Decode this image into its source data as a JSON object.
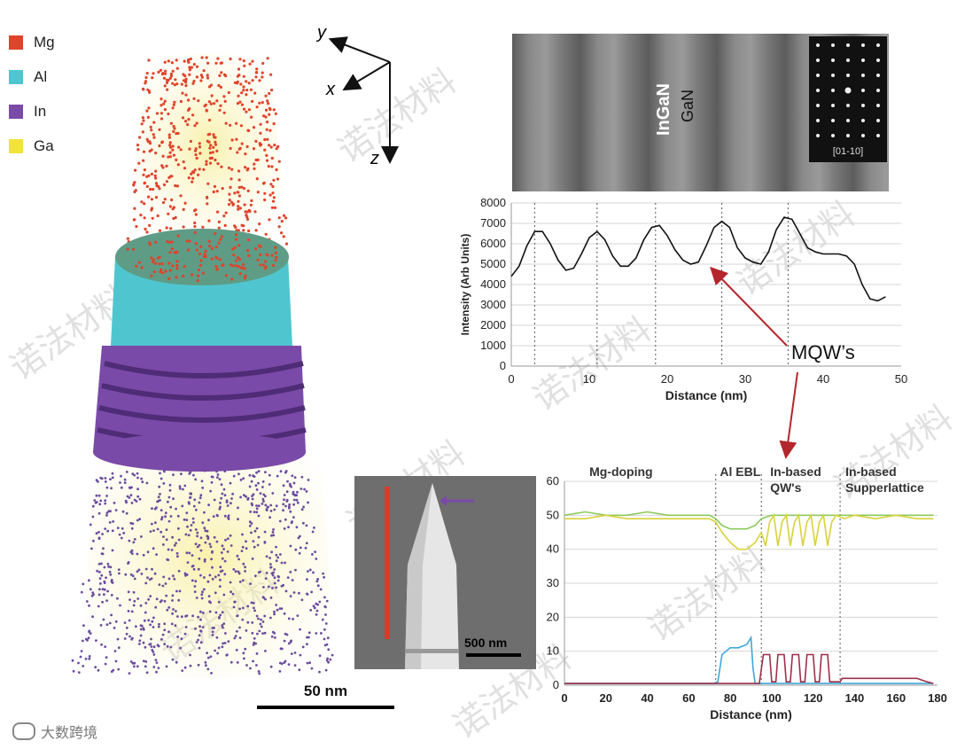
{
  "legend": [
    {
      "label": "Mg",
      "color": "#e0432b"
    },
    {
      "label": "Al",
      "color": "#4fc6cf"
    },
    {
      "label": "In",
      "color": "#7a4aa8"
    },
    {
      "label": "Ga",
      "color": "#f2e33a"
    }
  ],
  "scale_bar_50": "50 nm",
  "axes_triad": {
    "y": "y",
    "x": "x",
    "z": "z"
  },
  "tem": {
    "label_ingan": "InGaN",
    "label_gan": "GaN",
    "diffraction_label": "[01-10]"
  },
  "sem": {
    "scale_label": "500 nm"
  },
  "annotation_mqw": "MQW’s",
  "watermark_text": "诺法材料",
  "footer_brand": "大数跨境",
  "chart_data": [
    {
      "type": "line",
      "xlabel": "Distance (nm)",
      "ylabel": "Intensity (Arb Units)",
      "xlim": [
        0,
        50
      ],
      "ylim": [
        0,
        8000
      ],
      "xticks": [
        0,
        10,
        20,
        30,
        40,
        50
      ],
      "yticks": [
        0,
        1000,
        2000,
        3000,
        4000,
        5000,
        6000,
        7000,
        8000
      ],
      "grid": true,
      "vlines": [
        3,
        11,
        18.5,
        27,
        35.5
      ],
      "series": [
        {
          "color": "#111111",
          "points": [
            [
              0,
              4400
            ],
            [
              1,
              4900
            ],
            [
              2,
              5900
            ],
            [
              3,
              6600
            ],
            [
              4,
              6600
            ],
            [
              5,
              6000
            ],
            [
              6,
              5200
            ],
            [
              7,
              4700
            ],
            [
              8,
              4800
            ],
            [
              9,
              5500
            ],
            [
              10,
              6300
            ],
            [
              11,
              6600
            ],
            [
              12,
              6200
            ],
            [
              13,
              5400
            ],
            [
              14,
              4900
            ],
            [
              15,
              4900
            ],
            [
              16,
              5300
            ],
            [
              17,
              6200
            ],
            [
              18,
              6800
            ],
            [
              19,
              6900
            ],
            [
              20,
              6400
            ],
            [
              21,
              5700
            ],
            [
              22,
              5200
            ],
            [
              23,
              5000
            ],
            [
              24,
              5100
            ],
            [
              25,
              5900
            ],
            [
              26,
              6800
            ],
            [
              27,
              7100
            ],
            [
              28,
              6800
            ],
            [
              29,
              5800
            ],
            [
              30,
              5300
            ],
            [
              31,
              5100
            ],
            [
              32,
              5000
            ],
            [
              33,
              5600
            ],
            [
              34,
              6700
            ],
            [
              35,
              7300
            ],
            [
              36,
              7200
            ],
            [
              37,
              6500
            ],
            [
              38,
              5800
            ],
            [
              39,
              5600
            ],
            [
              40,
              5500
            ],
            [
              41,
              5500
            ],
            [
              42,
              5500
            ],
            [
              43,
              5400
            ],
            [
              44,
              5000
            ],
            [
              45,
              4000
            ],
            [
              46,
              3300
            ],
            [
              47,
              3200
            ],
            [
              48,
              3400
            ]
          ]
        }
      ]
    },
    {
      "type": "line",
      "xlabel": "Distance (nm)",
      "ylabel": "",
      "xlim": [
        0,
        180
      ],
      "ylim": [
        0,
        60
      ],
      "xticks": [
        0,
        20,
        40,
        60,
        80,
        100,
        120,
        140,
        160,
        180
      ],
      "yticks": [
        0,
        10,
        20,
        30,
        40,
        50,
        60
      ],
      "grid": true,
      "regions": [
        {
          "label": "Mg-doping",
          "label2": ""
        },
        {
          "label": "Al EBL",
          "label2": ""
        },
        {
          "label": "In-based",
          "label2": "QW's"
        },
        {
          "label": "In-based",
          "label2": "Supperlattice"
        }
      ],
      "region_boundaries": [
        73,
        95,
        133
      ],
      "series": [
        {
          "color": "#8cc95a",
          "points": [
            [
              0,
              50
            ],
            [
              10,
              51
            ],
            [
              20,
              50
            ],
            [
              30,
              50
            ],
            [
              40,
              51
            ],
            [
              50,
              50
            ],
            [
              60,
              50
            ],
            [
              70,
              50
            ],
            [
              73,
              49
            ],
            [
              76,
              47
            ],
            [
              80,
              46
            ],
            [
              84,
              46
            ],
            [
              88,
              46
            ],
            [
              92,
              47
            ],
            [
              95,
              49
            ],
            [
              100,
              50
            ],
            [
              110,
              50
            ],
            [
              120,
              50
            ],
            [
              130,
              50
            ],
            [
              140,
              50
            ],
            [
              150,
              50
            ],
            [
              160,
              50
            ],
            [
              170,
              50
            ],
            [
              178,
              50
            ]
          ]
        },
        {
          "color": "#d8d23a",
          "points": [
            [
              0,
              49
            ],
            [
              10,
              49
            ],
            [
              20,
              50
            ],
            [
              30,
              49
            ],
            [
              40,
              49
            ],
            [
              50,
              49
            ],
            [
              60,
              49
            ],
            [
              70,
              49
            ],
            [
              73,
              48
            ],
            [
              76,
              45
            ],
            [
              80,
              42
            ],
            [
              84,
              40
            ],
            [
              88,
              40
            ],
            [
              92,
              42
            ],
            [
              95,
              45
            ],
            [
              97,
              41
            ],
            [
              99,
              48
            ],
            [
              101,
              50
            ],
            [
              103,
              41
            ],
            [
              105,
              48
            ],
            [
              107,
              50
            ],
            [
              109,
              41
            ],
            [
              111,
              48
            ],
            [
              113,
              50
            ],
            [
              115,
              41
            ],
            [
              117,
              48
            ],
            [
              119,
              50
            ],
            [
              121,
              41
            ],
            [
              123,
              48
            ],
            [
              125,
              50
            ],
            [
              127,
              41
            ],
            [
              129,
              48
            ],
            [
              131,
              50
            ],
            [
              135,
              49
            ],
            [
              140,
              50
            ],
            [
              150,
              49
            ],
            [
              160,
              50
            ],
            [
              170,
              49
            ],
            [
              178,
              49
            ]
          ]
        },
        {
          "color": "#3fa7d6",
          "points": [
            [
              0,
              0.5
            ],
            [
              72,
              0.5
            ],
            [
              74,
              1
            ],
            [
              76,
              9
            ],
            [
              80,
              11
            ],
            [
              84,
              11
            ],
            [
              88,
              12
            ],
            [
              90,
              14
            ],
            [
              91,
              5
            ],
            [
              92,
              0.5
            ],
            [
              178,
              0.5
            ]
          ]
        },
        {
          "color": "#9c2f4a",
          "points": [
            [
              0,
              0.5
            ],
            [
              94,
              0.5
            ],
            [
              96,
              9
            ],
            [
              99,
              9
            ],
            [
              100,
              1
            ],
            [
              102,
              1
            ],
            [
              103,
              9
            ],
            [
              106,
              9
            ],
            [
              107,
              1
            ],
            [
              109,
              1
            ],
            [
              110,
              9
            ],
            [
              113,
              9
            ],
            [
              114,
              1
            ],
            [
              116,
              1
            ],
            [
              117,
              9
            ],
            [
              120,
              9
            ],
            [
              121,
              1
            ],
            [
              123,
              1
            ],
            [
              124,
              9
            ],
            [
              127,
              9
            ],
            [
              128,
              1
            ],
            [
              133,
              1
            ],
            [
              134,
              2
            ],
            [
              145,
              2
            ],
            [
              160,
              2
            ],
            [
              170,
              2
            ],
            [
              175,
              1
            ],
            [
              178,
              0.5
            ]
          ]
        }
      ]
    }
  ]
}
